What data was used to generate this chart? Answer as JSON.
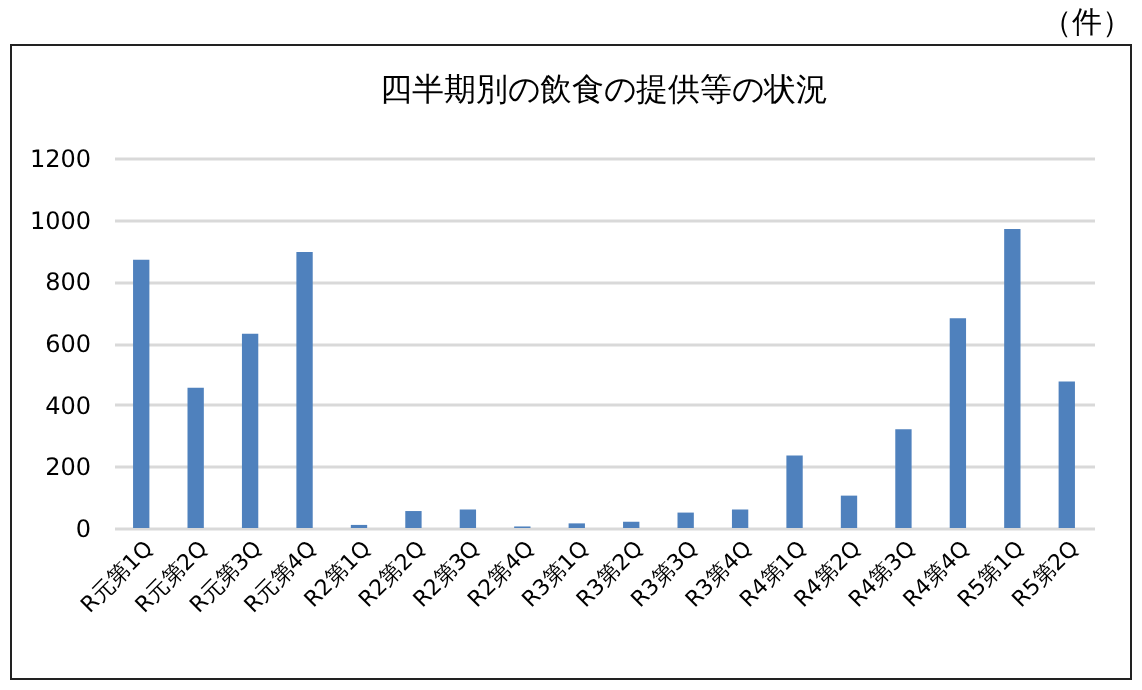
{
  "chart_data": {
    "type": "bar",
    "title": "四半期別の飲食の提供等の状況",
    "ylabel": "（件）",
    "categories": [
      "R元第1Q",
      "R元第2Q",
      "R元第3Q",
      "R元第4Q",
      "R2第1Q",
      "R2第2Q",
      "R2第3Q",
      "R2第4Q",
      "R3第1Q",
      "R3第2Q",
      "R3第3Q",
      "R3第4Q",
      "R4第1Q",
      "R4第2Q",
      "R4第3Q",
      "R4第4Q",
      "R5第1Q",
      "R5第2Q"
    ],
    "values": [
      870,
      455,
      630,
      895,
      10,
      55,
      60,
      5,
      15,
      20,
      50,
      60,
      235,
      105,
      320,
      680,
      970,
      475
    ],
    "color": "#4f81bd",
    "ylim": [
      0,
      1200
    ],
    "yticks": [
      0,
      200,
      400,
      600,
      800,
      1000,
      1200
    ],
    "grid": "y"
  }
}
